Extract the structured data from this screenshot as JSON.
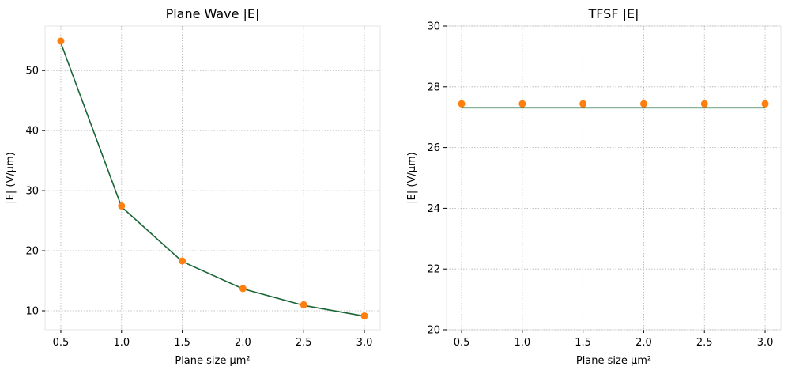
{
  "chart_data": [
    {
      "type": "line",
      "title": "Plane Wave |E|",
      "xlabel": "Plane size μm²",
      "ylabel": "|E| (V/μm)",
      "xlim": [
        0.37,
        3.13
      ],
      "ylim": [
        6.84,
        57.4
      ],
      "xticks": [
        0.5,
        1.0,
        1.5,
        2.0,
        2.5,
        3.0
      ],
      "xtick_labels": [
        "0.5",
        "1.0",
        "1.5",
        "2.0",
        "2.5",
        "3.0"
      ],
      "yticks": [
        10,
        20,
        30,
        40,
        50
      ],
      "ytick_labels": [
        "10",
        "20",
        "30",
        "40",
        "50"
      ],
      "grid": true,
      "series": [
        {
          "style": "line",
          "color": "#1a6535",
          "x": [
            0.5,
            1.0,
            1.5,
            2.0,
            2.5,
            3.0
          ],
          "y": [
            54.6,
            27.3,
            18.2,
            13.65,
            10.9,
            9.1
          ]
        },
        {
          "style": "markers",
          "color": "#ff7f0e",
          "x": [
            0.5,
            1.0,
            1.5,
            2.0,
            2.5,
            3.0
          ],
          "y": [
            54.9,
            27.45,
            18.3,
            13.7,
            11.0,
            9.15
          ]
        }
      ]
    },
    {
      "type": "line",
      "title": "TFSF |E|",
      "xlabel": "Plane size μm²",
      "ylabel": "|E| (V/μm)",
      "xlim": [
        0.376,
        3.13
      ],
      "ylim": [
        20,
        30
      ],
      "xticks": [
        0.5,
        1.0,
        1.5,
        2.0,
        2.5,
        3.0
      ],
      "xtick_labels": [
        "0.5",
        "1.0",
        "1.5",
        "2.0",
        "2.5",
        "3.0"
      ],
      "yticks": [
        20,
        22,
        24,
        26,
        28,
        30
      ],
      "ytick_labels": [
        "20",
        "22",
        "24",
        "26",
        "28",
        "30"
      ],
      "grid": true,
      "series": [
        {
          "style": "line",
          "color": "#1a6535",
          "x": [
            0.5,
            1.0,
            1.5,
            2.0,
            2.5,
            3.0
          ],
          "y": [
            27.31,
            27.31,
            27.31,
            27.31,
            27.31,
            27.31
          ]
        },
        {
          "style": "markers",
          "color": "#ff7f0e",
          "x": [
            0.5,
            1.0,
            1.5,
            2.0,
            2.5,
            3.0
          ],
          "y": [
            27.44,
            27.44,
            27.44,
            27.44,
            27.44,
            27.44
          ]
        }
      ]
    }
  ]
}
